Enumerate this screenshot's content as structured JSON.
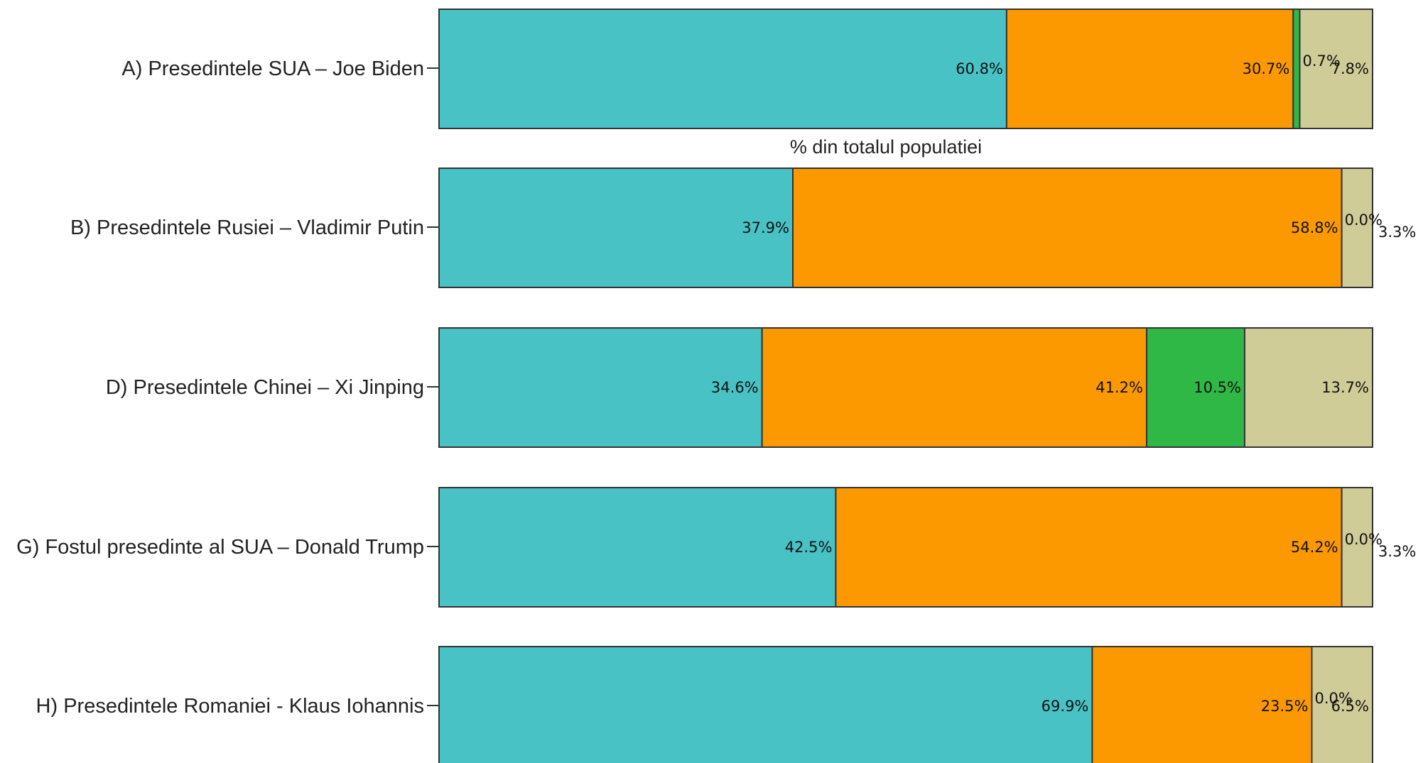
{
  "chart_data": {
    "type": "bar",
    "orientation": "horizontal",
    "stacked": true,
    "xlim": [
      0,
      100
    ],
    "categories": [
      "A) Presedintele SUA – Joe Biden",
      "B) Presedintele Rusiei – Vladimir Putin",
      "D) Presedintele Chinei – Xi Jinping",
      "G) Fostul presedinte al SUA – Donald Trump",
      "H) Presedintele Romaniei - Klaus Iohannis"
    ],
    "series": [
      {
        "color": "#48c2c5",
        "values": [
          60.8,
          37.9,
          34.6,
          42.5,
          69.9
        ]
      },
      {
        "color": "#fc9800",
        "values": [
          30.7,
          58.8,
          41.2,
          54.2,
          23.5
        ]
      },
      {
        "color": "#2fb845",
        "values": [
          0.7,
          0.0,
          10.5,
          0.0,
          0.0
        ]
      },
      {
        "color": "#d0cc98",
        "values": [
          7.8,
          3.3,
          13.7,
          3.3,
          6.5
        ]
      }
    ],
    "labels": [
      [
        "60.8%",
        "30.7%",
        "0.7%",
        "7.8%"
      ],
      [
        "37.9%",
        "58.8%",
        "0.0%",
        "3.3%"
      ],
      [
        "34.6%",
        "41.2%",
        "10.5%",
        "13.7%"
      ],
      [
        "42.5%",
        "54.2%",
        "0.0%",
        "3.3%"
      ],
      [
        "69.9%",
        "23.5%",
        "0.0%",
        "6.5%"
      ]
    ],
    "annotation": "% din totalul populatiei",
    "legend": "none",
    "grid": false
  }
}
